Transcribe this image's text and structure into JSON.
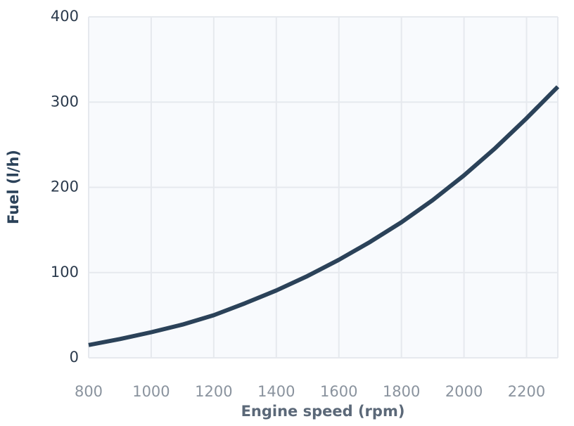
{
  "chart_data": {
    "type": "line",
    "x_label": "Engine speed (rpm)",
    "y_label": "Fuel (l/h)",
    "x": [
      800,
      900,
      1000,
      1100,
      1200,
      1300,
      1400,
      1500,
      1600,
      1700,
      1800,
      1900,
      2000,
      2100,
      2200,
      2300
    ],
    "series": [
      {
        "color": "#2b4259",
        "values": [
          15,
          22,
          30,
          39,
          50,
          64,
          79,
          96,
          115,
          136,
          159,
          185,
          214,
          246,
          281,
          318
        ]
      }
    ],
    "xlim": [
      800,
      2300
    ],
    "xticks": [
      800,
      1000,
      1200,
      1400,
      1600,
      1800,
      2000,
      2200
    ],
    "ylim": [
      0,
      400
    ],
    "yticks": [
      0,
      100,
      200,
      300,
      400
    ],
    "grid": true
  }
}
